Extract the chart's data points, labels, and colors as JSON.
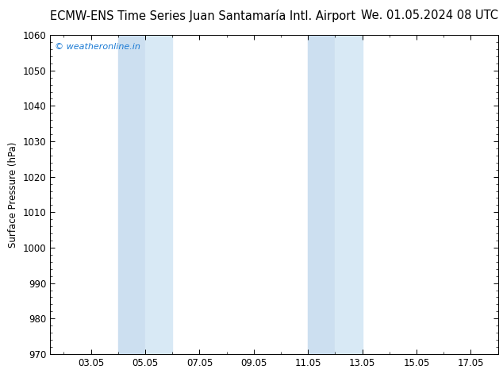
{
  "title_left": "ECMW-ENS Time Series Juan Santamaría Intl. Airport",
  "title_right": "We. 01.05.2024 08 UTC",
  "ylabel": "Surface Pressure (hPa)",
  "xlabel_ticks": [
    "03.05",
    "05.05",
    "07.05",
    "09.05",
    "11.05",
    "13.05",
    "15.05",
    "17.05"
  ],
  "xlabel_ticks_pos": [
    3,
    5,
    7,
    9,
    11,
    13,
    15,
    17
  ],
  "ylim": [
    970,
    1060
  ],
  "yticks": [
    970,
    980,
    990,
    1000,
    1010,
    1020,
    1030,
    1040,
    1050,
    1060
  ],
  "watermark": "© weatheronline.in",
  "watermark_color": "#1a7ad4",
  "bg_color": "#ffffff",
  "plot_bg_color": "#ffffff",
  "shaded_bands": [
    {
      "xmin": 4.0,
      "xmax": 5.0,
      "color": "#ccdff0"
    },
    {
      "xmin": 5.0,
      "xmax": 6.0,
      "color": "#d8e9f5"
    },
    {
      "xmin": 11.0,
      "xmax": 12.0,
      "color": "#ccdff0"
    },
    {
      "xmin": 12.0,
      "xmax": 13.0,
      "color": "#d8e9f5"
    }
  ],
  "xlim": [
    1.5,
    18.0
  ],
  "title_fontsize": 10.5,
  "tick_label_fontsize": 8.5,
  "ylabel_fontsize": 8.5
}
